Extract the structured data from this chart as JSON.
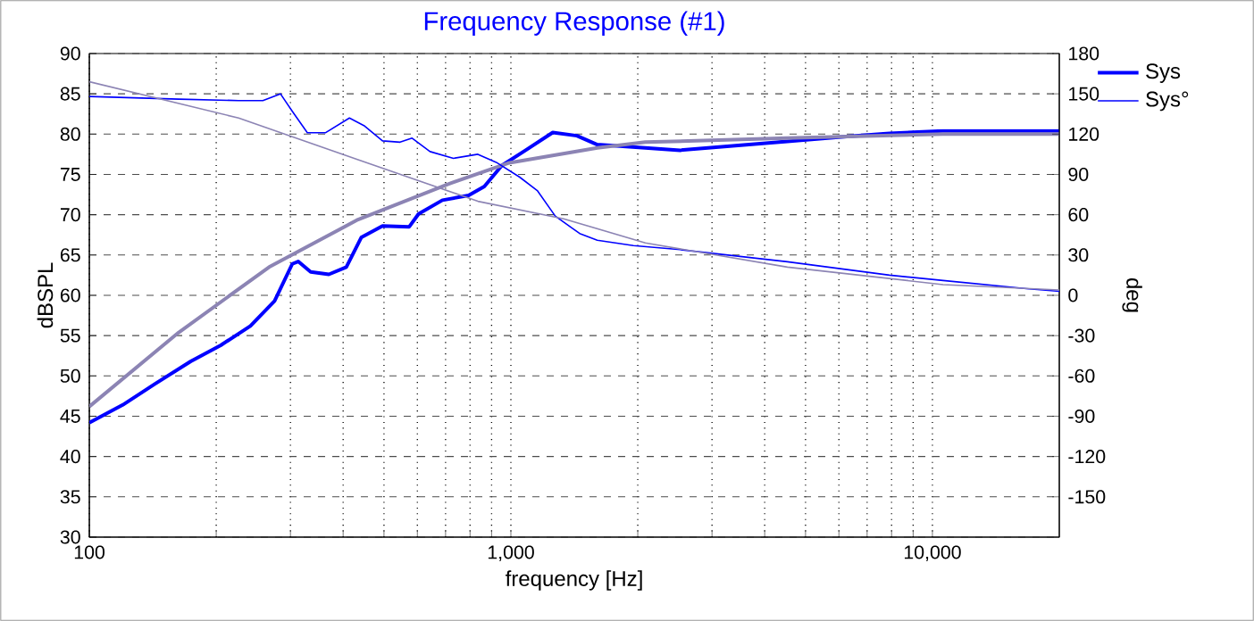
{
  "chart_data": {
    "type": "line",
    "title": "Frequency Response (#1)",
    "xlabel": "frequency [Hz]",
    "ylabel": "dBSPL",
    "y2label": "deg",
    "log": "x",
    "grid": true,
    "legend": "top right",
    "xlim": [
      100,
      20000
    ],
    "ylim": [
      30,
      90
    ],
    "y2lim": [
      -180,
      180
    ],
    "xticks": [
      {
        "value": 100,
        "label": "100"
      },
      {
        "value": 200,
        "label": null
      },
      {
        "value": 300,
        "label": null
      },
      {
        "value": 400,
        "label": null
      },
      {
        "value": 500,
        "label": null
      },
      {
        "value": 600,
        "label": null
      },
      {
        "value": 700,
        "label": null
      },
      {
        "value": 800,
        "label": null
      },
      {
        "value": 900,
        "label": null
      },
      {
        "value": 1000,
        "label": "1,000"
      },
      {
        "value": 2000,
        "label": null
      },
      {
        "value": 3000,
        "label": null
      },
      {
        "value": 4000,
        "label": null
      },
      {
        "value": 5000,
        "label": null
      },
      {
        "value": 6000,
        "label": null
      },
      {
        "value": 7000,
        "label": null
      },
      {
        "value": 8000,
        "label": null
      },
      {
        "value": 9000,
        "label": null
      },
      {
        "value": 10000,
        "label": "10,000"
      }
    ],
    "yticks": [
      30,
      35,
      40,
      45,
      50,
      55,
      60,
      65,
      70,
      75,
      80,
      85,
      90
    ],
    "y2ticks": [
      -150,
      -120,
      -90,
      -60,
      -30,
      0,
      30,
      60,
      90,
      120,
      150,
      180
    ],
    "series": [
      {
        "name": "Sys",
        "color": "#0000ff",
        "x": [
          100,
          120,
          143,
          174,
          205,
          241,
          275,
          303,
          313,
          335,
          370,
          407,
          442,
          496,
          574,
          604,
          688,
          794,
          865,
          952,
          1084,
          1257,
          1434,
          1603,
          2084,
          2519,
          4529,
          6258,
          7912,
          10600,
          20000
        ],
        "values": [
          44.2,
          46.4,
          49.0,
          51.8,
          53.8,
          56.2,
          59.3,
          63.9,
          64.2,
          62.9,
          62.6,
          63.5,
          67.2,
          68.6,
          68.5,
          70.1,
          71.8,
          72.4,
          73.5,
          76.1,
          78.0,
          80.2,
          79.8,
          78.7,
          78.3,
          78.0,
          79.1,
          79.7,
          80.1,
          80.4,
          80.4
        ]
      },
      {
        "name": "Sys°",
        "color": "#0000ff",
        "axis": "y2",
        "x": [
          100,
          163,
          226,
          258,
          284,
          303,
          329,
          363,
          414,
          450,
          496,
          546,
          583,
          643,
          731,
          835,
          923,
          1049,
          1155,
          1274,
          1456,
          1603,
          1953,
          2519,
          4529,
          7912,
          10600,
          16700,
          20000
        ],
        "values": [
          148,
          146,
          145,
          145,
          150,
          137,
          121,
          121,
          132,
          126,
          115,
          114,
          117,
          107,
          102,
          105,
          99,
          88,
          78,
          59,
          46,
          41,
          37,
          34,
          25,
          15,
          11,
          5,
          3
        ]
      },
      {
        "color": "#8c84b4",
        "x": [
          100,
          163,
          267,
          434,
          710,
          985,
          1603,
          2084,
          4529,
          10600,
          20000
        ],
        "values": [
          46.2,
          55.4,
          63.5,
          69.4,
          73.8,
          76.4,
          78.3,
          79.0,
          79.5,
          80.0,
          80.0
        ]
      },
      {
        "color": "#8c84b4",
        "axis": "y2",
        "x": [
          100,
          226,
          434,
          835,
          1334,
          2084,
          4529,
          10600,
          20000
        ],
        "values": [
          159,
          132,
          101,
          70,
          57,
          39,
          21,
          8,
          4
        ]
      }
    ]
  }
}
